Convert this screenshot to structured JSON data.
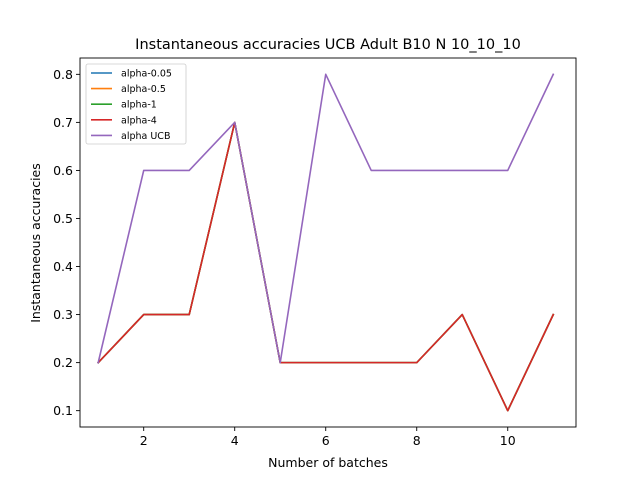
{
  "chart_data": {
    "type": "line",
    "title": "Instantaneous accuracies UCB Adult B10 N 10_10_10",
    "xlabel": "Number of batches",
    "ylabel": "Instantaneous accuracies",
    "xlim": [
      0.6,
      11.5
    ],
    "ylim": [
      0.066,
      0.834
    ],
    "xticks": [
      "2",
      "4",
      "6",
      "8",
      "10"
    ],
    "yticks": [
      "0.1",
      "0.2",
      "0.3",
      "0.4",
      "0.5",
      "0.6",
      "0.7",
      "0.8"
    ],
    "grid": false,
    "legend_position": "top-left",
    "x": [
      1,
      2,
      3,
      4,
      5,
      6,
      7,
      8,
      9,
      10,
      11
    ],
    "series": [
      {
        "name": "alpha-0.05",
        "color": "#1f77b4",
        "values": [
          0.2,
          0.3,
          0.3,
          0.7,
          0.2,
          0.2,
          0.2,
          0.2,
          0.3,
          0.1,
          0.3
        ]
      },
      {
        "name": "alpha-0.5",
        "color": "#ff7f0e",
        "values": [
          0.2,
          0.3,
          0.3,
          0.7,
          0.2,
          0.2,
          0.2,
          0.2,
          0.3,
          0.1,
          0.3
        ]
      },
      {
        "name": "alpha-1",
        "color": "#2ca02c",
        "values": [
          0.2,
          0.3,
          0.3,
          0.7,
          0.2,
          0.2,
          0.2,
          0.2,
          0.3,
          0.1,
          0.3
        ]
      },
      {
        "name": "alpha-4",
        "color": "#d62728",
        "values": [
          0.2,
          0.3,
          0.3,
          0.7,
          0.2,
          0.2,
          0.2,
          0.2,
          0.3,
          0.1,
          0.3
        ]
      },
      {
        "name": "alpha UCB",
        "color": "#9467bd",
        "values": [
          0.2,
          0.6,
          0.6,
          0.7,
          0.2,
          0.8,
          0.6,
          0.6,
          0.6,
          0.6,
          0.8
        ]
      }
    ]
  }
}
